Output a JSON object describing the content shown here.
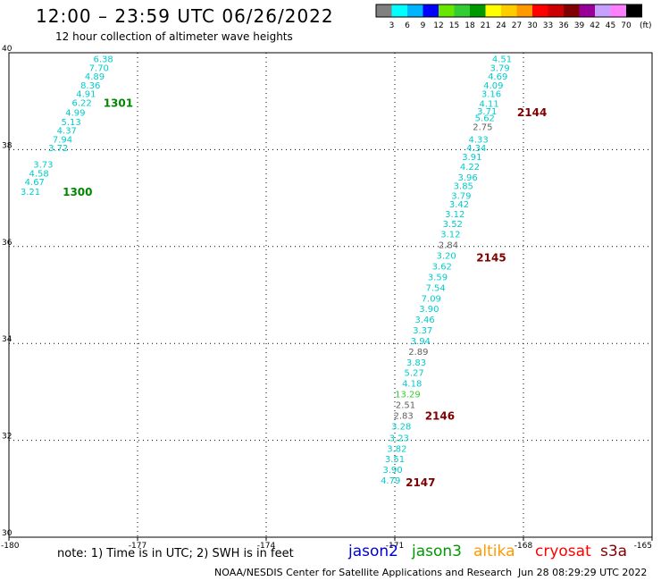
{
  "header": {
    "title": "12:00 – 23:59 UTC 06/26/2022",
    "subtitle": "12 hour collection of altimeter wave heights"
  },
  "colorbar": {
    "unit": "(ft)",
    "bins": [
      {
        "label": "3",
        "color": "#808080"
      },
      {
        "label": "6",
        "color": "#00ffff"
      },
      {
        "label": "9",
        "color": "#00b4ff"
      },
      {
        "label": "12",
        "color": "#0000ff"
      },
      {
        "label": "15",
        "color": "#66e600"
      },
      {
        "label": "18",
        "color": "#33cc33"
      },
      {
        "label": "21",
        "color": "#009900"
      },
      {
        "label": "24",
        "color": "#ffff00"
      },
      {
        "label": "27",
        "color": "#ffcc00"
      },
      {
        "label": "30",
        "color": "#ff9900"
      },
      {
        "label": "33",
        "color": "#ff0000"
      },
      {
        "label": "36",
        "color": "#cc0000"
      },
      {
        "label": "39",
        "color": "#800000"
      },
      {
        "label": "42",
        "color": "#990099"
      },
      {
        "label": "45",
        "color": "#c8a0ff"
      },
      {
        "label": "70",
        "color": "#ff80ff"
      },
      {
        "label": "",
        "color": "#000000"
      }
    ]
  },
  "chart_data": {
    "type": "scatter",
    "xlim": [
      -180,
      -165
    ],
    "ylim": [
      30,
      40
    ],
    "x_ticks": [
      "-180",
      "-177",
      "-174",
      "-171",
      "-168",
      "-165"
    ],
    "y_ticks": [
      "30",
      "32",
      "34",
      "36",
      "38",
      "40"
    ],
    "grid": true,
    "colors": {
      "cyan": "#00cccc",
      "gray": "#606060",
      "green": "#33cc33",
      "pass_green": "#008800",
      "pass_red": "#800000"
    },
    "points": [
      {
        "x": -177.8,
        "y": 39.88,
        "v": "6.38",
        "c": "cyan"
      },
      {
        "x": -177.9,
        "y": 39.7,
        "v": "7.70",
        "c": "cyan"
      },
      {
        "x": -178.0,
        "y": 39.52,
        "v": "4.89",
        "c": "cyan"
      },
      {
        "x": -178.1,
        "y": 39.34,
        "v": "8.36",
        "c": "cyan"
      },
      {
        "x": -178.2,
        "y": 39.16,
        "v": "4.91",
        "c": "cyan"
      },
      {
        "x": -178.3,
        "y": 38.98,
        "v": "6.22",
        "c": "cyan"
      },
      {
        "x": -178.45,
        "y": 38.77,
        "v": "4.99",
        "c": "cyan"
      },
      {
        "x": -178.55,
        "y": 38.58,
        "v": "5.13",
        "c": "cyan"
      },
      {
        "x": -178.65,
        "y": 38.4,
        "v": "4.37",
        "c": "cyan"
      },
      {
        "x": -178.75,
        "y": 38.22,
        "v": "7.94",
        "c": "cyan"
      },
      {
        "x": -178.85,
        "y": 38.04,
        "v": "3.72",
        "c": "cyan"
      },
      {
        "x": -179.2,
        "y": 37.7,
        "v": "3.73",
        "c": "cyan"
      },
      {
        "x": -179.3,
        "y": 37.52,
        "v": "4.58",
        "c": "cyan"
      },
      {
        "x": -179.4,
        "y": 37.34,
        "v": "4.67",
        "c": "cyan"
      },
      {
        "x": -179.5,
        "y": 37.14,
        "v": "3.21",
        "c": "cyan"
      },
      {
        "x": -168.5,
        "y": 39.88,
        "v": "4.51",
        "c": "cyan"
      },
      {
        "x": -168.55,
        "y": 39.7,
        "v": "3.79",
        "c": "cyan"
      },
      {
        "x": -168.6,
        "y": 39.52,
        "v": "4.69",
        "c": "cyan"
      },
      {
        "x": -168.7,
        "y": 39.34,
        "v": "4.09",
        "c": "cyan"
      },
      {
        "x": -168.75,
        "y": 39.16,
        "v": "3.16",
        "c": "cyan"
      },
      {
        "x": -168.8,
        "y": 38.96,
        "v": "4.11",
        "c": "cyan"
      },
      {
        "x": -168.85,
        "y": 38.8,
        "v": "3.71",
        "c": "cyan"
      },
      {
        "x": -168.9,
        "y": 38.66,
        "v": "5.62",
        "c": "cyan"
      },
      {
        "x": -168.95,
        "y": 38.48,
        "v": "2.75",
        "c": "gray"
      },
      {
        "x": -169.05,
        "y": 38.22,
        "v": "4.33",
        "c": "cyan"
      },
      {
        "x": -169.1,
        "y": 38.04,
        "v": "4.34",
        "c": "cyan"
      },
      {
        "x": -169.2,
        "y": 37.86,
        "v": "3.91",
        "c": "cyan"
      },
      {
        "x": -169.25,
        "y": 37.66,
        "v": "4.22",
        "c": "cyan"
      },
      {
        "x": -169.3,
        "y": 37.44,
        "v": "3.96",
        "c": "cyan"
      },
      {
        "x": -169.4,
        "y": 37.26,
        "v": "3.85",
        "c": "cyan"
      },
      {
        "x": -169.45,
        "y": 37.06,
        "v": "3.79",
        "c": "cyan"
      },
      {
        "x": -169.5,
        "y": 36.88,
        "v": "3.42",
        "c": "cyan"
      },
      {
        "x": -169.6,
        "y": 36.68,
        "v": "3.12",
        "c": "cyan"
      },
      {
        "x": -169.65,
        "y": 36.48,
        "v": "3.52",
        "c": "cyan"
      },
      {
        "x": -169.7,
        "y": 36.26,
        "v": "3.12",
        "c": "cyan"
      },
      {
        "x": -169.75,
        "y": 36.04,
        "v": "2.84",
        "c": "gray"
      },
      {
        "x": -169.8,
        "y": 35.82,
        "v": "3.20",
        "c": "cyan"
      },
      {
        "x": -169.9,
        "y": 35.6,
        "v": "3.62",
        "c": "cyan"
      },
      {
        "x": -170.0,
        "y": 35.38,
        "v": "3.59",
        "c": "cyan"
      },
      {
        "x": -170.05,
        "y": 35.16,
        "v": "7.54",
        "c": "cyan"
      },
      {
        "x": -170.15,
        "y": 34.94,
        "v": "7.09",
        "c": "cyan"
      },
      {
        "x": -170.2,
        "y": 34.72,
        "v": "3.90",
        "c": "cyan"
      },
      {
        "x": -170.3,
        "y": 34.5,
        "v": "3.46",
        "c": "cyan"
      },
      {
        "x": -170.35,
        "y": 34.28,
        "v": "3.37",
        "c": "cyan"
      },
      {
        "x": -170.4,
        "y": 34.06,
        "v": "3.94",
        "c": "cyan"
      },
      {
        "x": -170.45,
        "y": 33.84,
        "v": "2.89",
        "c": "gray"
      },
      {
        "x": -170.5,
        "y": 33.62,
        "v": "3.83",
        "c": "cyan"
      },
      {
        "x": -170.55,
        "y": 33.4,
        "v": "5.27",
        "c": "cyan"
      },
      {
        "x": -170.6,
        "y": 33.18,
        "v": "4.18",
        "c": "cyan"
      },
      {
        "x": -170.7,
        "y": 32.96,
        "v": "13.29",
        "c": "green"
      },
      {
        "x": -170.75,
        "y": 32.74,
        "v": "2.51",
        "c": "gray"
      },
      {
        "x": -170.8,
        "y": 32.52,
        "v": "2.83",
        "c": "gray"
      },
      {
        "x": -170.85,
        "y": 32.3,
        "v": "3.28",
        "c": "cyan"
      },
      {
        "x": -170.9,
        "y": 32.06,
        "v": "3.23",
        "c": "cyan"
      },
      {
        "x": -170.95,
        "y": 31.84,
        "v": "3.82",
        "c": "cyan"
      },
      {
        "x": -171.0,
        "y": 31.62,
        "v": "3.51",
        "c": "cyan"
      },
      {
        "x": -171.05,
        "y": 31.4,
        "v": "3.90",
        "c": "cyan"
      },
      {
        "x": -171.1,
        "y": 31.18,
        "v": "4.79",
        "c": "cyan"
      }
    ],
    "passes": [
      {
        "x": -177.45,
        "y": 38.98,
        "label": "1301",
        "c": "pass_green"
      },
      {
        "x": -178.4,
        "y": 37.14,
        "label": "1300",
        "c": "pass_green"
      },
      {
        "x": -167.8,
        "y": 38.78,
        "label": "2144",
        "c": "pass_red"
      },
      {
        "x": -168.75,
        "y": 35.78,
        "label": "2145",
        "c": "pass_red"
      },
      {
        "x": -169.95,
        "y": 32.52,
        "label": "2146",
        "c": "pass_red"
      },
      {
        "x": -170.4,
        "y": 31.14,
        "label": "2147",
        "c": "pass_red"
      }
    ]
  },
  "note": "note: 1) Time is in UTC; 2) SWH is in feet",
  "legend": [
    {
      "name": "jason2",
      "color": "#0000cc"
    },
    {
      "name": "jason3",
      "color": "#009900"
    },
    {
      "name": "altika",
      "color": "#ff9900"
    },
    {
      "name": "cryosat",
      "color": "#ff0000"
    },
    {
      "name": "s3a",
      "color": "#800000"
    }
  ],
  "footer": "NOAA/NESDIS Center for Satellite Applications and Research",
  "timestamp": "Jun 28 08:29:29 UTC 2022"
}
